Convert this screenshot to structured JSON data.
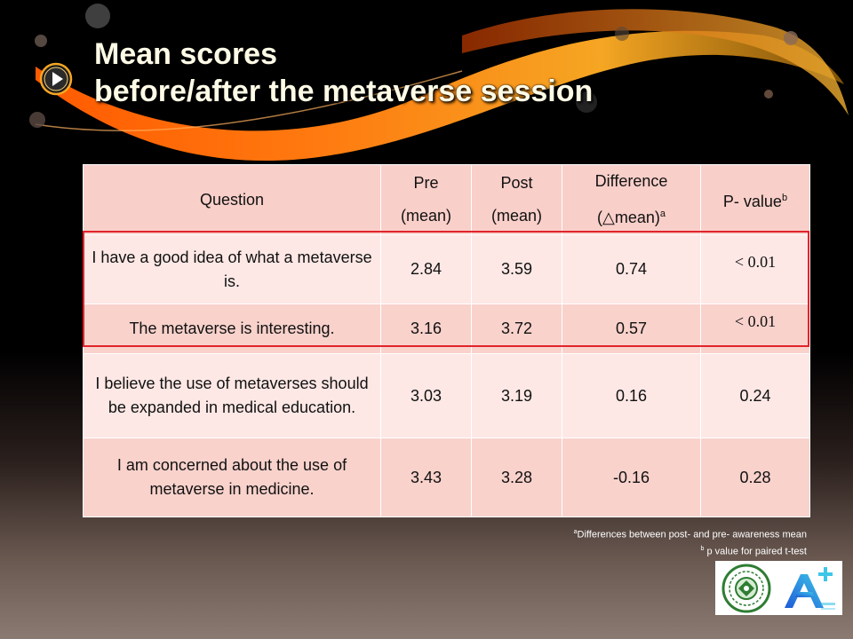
{
  "title": {
    "line1": "Mean scores",
    "line2": "before/after the metaverse session"
  },
  "table": {
    "headers": {
      "question": "Question",
      "pre_line1": "Pre",
      "pre_line2": "(mean)",
      "post_line1": "Post",
      "post_line2": "(mean)",
      "diff_line1": "Difference",
      "diff_line2": "(△mean)",
      "diff_sup": "a",
      "pvalue": "P- value",
      "pvalue_sup": "b"
    },
    "rows": [
      {
        "question": "I have a good idea of what a metaverse is.",
        "pre": "2.84",
        "post": "3.59",
        "diff": "0.74",
        "p": "< 0.01"
      },
      {
        "question": "The metaverse is interesting.",
        "pre": "3.16",
        "post": "3.72",
        "diff": "0.57",
        "p": "< 0.01"
      },
      {
        "question": "I believe the use of metaverses should be expanded in medical education.",
        "pre": "3.03",
        "post": "3.19",
        "diff": "0.16",
        "p": "0.24"
      },
      {
        "question": "I am concerned about the use of metaverse in medicine.",
        "pre": "3.43",
        "post": "3.28",
        "diff": "-0.16",
        "p": "0.28"
      }
    ]
  },
  "footnotes": {
    "a_mark": "a",
    "a_text": "Differences between post- and pre- awareness mean",
    "b_mark": "b",
    "b_text": "p value for paired t-test"
  },
  "colors": {
    "header_bg": "#f9cfc9",
    "row_light": "#fde8e5",
    "row_dark": "#f9d2cc",
    "highlight_border": "#e0242b",
    "swoosh_orange": "#ff6a00"
  },
  "icons": [
    "play-icon",
    "university-seal-logo",
    "a-plus-logo"
  ]
}
